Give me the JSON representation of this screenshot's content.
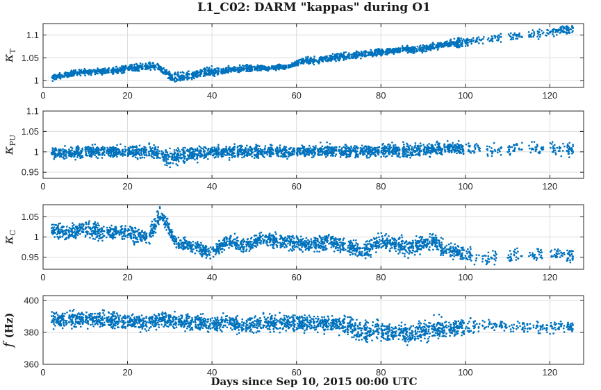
{
  "chart_data": {
    "type": "scatter",
    "title": "L1_C02: DARM \"kappas\" during O1",
    "xlabel": "Days since Sep 10, 2015 00:00 UTC",
    "xlim": [
      0,
      128
    ],
    "xticks": [
      0,
      20,
      40,
      60,
      80,
      100,
      120
    ],
    "xtick_labels": [
      "0",
      "20",
      "40",
      "60",
      "80",
      "100",
      "120"
    ],
    "grid": true,
    "marker_color": "#0072BD",
    "panels": [
      {
        "ylabel": "κ",
        "ylabel_sub": "T",
        "ylim": [
          0.985,
          1.125
        ],
        "yticks": [
          1,
          1.05,
          1.1
        ],
        "ytick_labels": [
          "1",
          "1.05",
          "1.1"
        ],
        "x": [
          2,
          5,
          8,
          12,
          16,
          20,
          24,
          27,
          31,
          35,
          38,
          42,
          46,
          50,
          54,
          58,
          61,
          65,
          69,
          73,
          77,
          81,
          85,
          89,
          93,
          97,
          101,
          105,
          110,
          115,
          119,
          122,
          124
        ],
        "y": [
          1.005,
          1.012,
          1.018,
          1.019,
          1.022,
          1.026,
          1.03,
          1.032,
          1.005,
          1.01,
          1.018,
          1.02,
          1.026,
          1.027,
          1.028,
          1.03,
          1.042,
          1.045,
          1.05,
          1.055,
          1.06,
          1.063,
          1.067,
          1.068,
          1.075,
          1.082,
          1.085,
          1.09,
          1.095,
          1.1,
          1.105,
          1.11,
          1.112
        ],
        "spread": [
          0.005,
          0.005,
          0.005,
          0.005,
          0.006,
          0.006,
          0.006,
          0.007,
          0.009,
          0.007,
          0.008,
          0.006,
          0.006,
          0.005,
          0.005,
          0.005,
          0.006,
          0.006,
          0.006,
          0.006,
          0.006,
          0.005,
          0.006,
          0.006,
          0.006,
          0.008,
          0.008,
          0.008,
          0.008,
          0.008,
          0.008,
          0.008,
          0.008
        ]
      },
      {
        "ylabel": "κ",
        "ylabel_sub": "PU",
        "ylim": [
          0.935,
          1.1
        ],
        "yticks": [
          0.95,
          1,
          1.05,
          1.1
        ],
        "ytick_labels": [
          "0.95",
          "1",
          "1.05",
          "1.1"
        ],
        "x": [
          2,
          6,
          10,
          15,
          20,
          25,
          28,
          30,
          34,
          38,
          42,
          46,
          50,
          55,
          60,
          65,
          70,
          75,
          80,
          85,
          90,
          95,
          100,
          105,
          110,
          115,
          120,
          124
        ],
        "y": [
          0.995,
          0.997,
          1.0,
          1.0,
          1.0,
          1.001,
          0.995,
          0.985,
          0.993,
          0.997,
          1.0,
          1.0,
          1.0,
          1.0,
          1.001,
          1.002,
          1.003,
          1.0,
          1.005,
          1.003,
          1.006,
          1.008,
          1.007,
          1.006,
          1.005,
          1.008,
          1.007,
          1.006
        ],
        "spread": [
          0.012,
          0.012,
          0.012,
          0.012,
          0.012,
          0.013,
          0.015,
          0.015,
          0.013,
          0.012,
          0.012,
          0.012,
          0.012,
          0.012,
          0.012,
          0.012,
          0.012,
          0.012,
          0.013,
          0.013,
          0.013,
          0.012,
          0.012,
          0.012,
          0.012,
          0.012,
          0.012,
          0.012
        ]
      },
      {
        "ylabel": "κ",
        "ylabel_sub": "C",
        "ylim": [
          0.92,
          1.08
        ],
        "yticks": [
          0.95,
          1,
          1.05
        ],
        "ytick_labels": [
          "0.95",
          "1",
          "1.05"
        ],
        "x": [
          2,
          6,
          10,
          15,
          20,
          25,
          28,
          32,
          36,
          40,
          44,
          48,
          52,
          56,
          60,
          64,
          68,
          72,
          76,
          80,
          84,
          88,
          92,
          96,
          100,
          104,
          110,
          115,
          120,
          124
        ],
        "y": [
          1.02,
          1.01,
          1.02,
          1.01,
          1.012,
          1.0,
          1.055,
          0.985,
          0.975,
          0.962,
          0.99,
          0.978,
          0.995,
          0.99,
          0.985,
          0.98,
          0.99,
          0.975,
          0.965,
          0.99,
          0.98,
          0.975,
          0.992,
          0.965,
          0.96,
          0.95,
          0.95,
          0.958,
          0.96,
          0.955
        ],
        "spread": [
          0.015,
          0.015,
          0.016,
          0.015,
          0.016,
          0.016,
          0.012,
          0.014,
          0.014,
          0.012,
          0.014,
          0.014,
          0.014,
          0.015,
          0.014,
          0.015,
          0.015,
          0.015,
          0.018,
          0.016,
          0.018,
          0.018,
          0.016,
          0.015,
          0.014,
          0.014,
          0.013,
          0.013,
          0.013,
          0.013
        ]
      },
      {
        "ylabel": "f",
        "ylabel_sub": "(Hz)",
        "ylim": [
          360,
          403
        ],
        "yticks": [
          360,
          380,
          400
        ],
        "ytick_labels": [
          "360",
          "380",
          "400"
        ],
        "x": [
          2,
          6,
          10,
          15,
          20,
          25,
          28,
          32,
          36,
          40,
          44,
          48,
          52,
          56,
          60,
          64,
          68,
          72,
          76,
          80,
          84,
          88,
          92,
          96,
          100,
          104,
          108,
          112,
          116,
          120,
          124
        ],
        "y": [
          387,
          388,
          388,
          388,
          387,
          386,
          388,
          387,
          386,
          385,
          386,
          384,
          386,
          386,
          386,
          385,
          386,
          384,
          380,
          381,
          380,
          379,
          382,
          383,
          383,
          385,
          385,
          383,
          384,
          383,
          384
        ],
        "spread": [
          4,
          4,
          4,
          4,
          4,
          4,
          4,
          4,
          4,
          4,
          4,
          4,
          4,
          4,
          4,
          4,
          4,
          5,
          5,
          5,
          5,
          6,
          5,
          4,
          4,
          3,
          3,
          3,
          3,
          3,
          3
        ]
      }
    ]
  }
}
